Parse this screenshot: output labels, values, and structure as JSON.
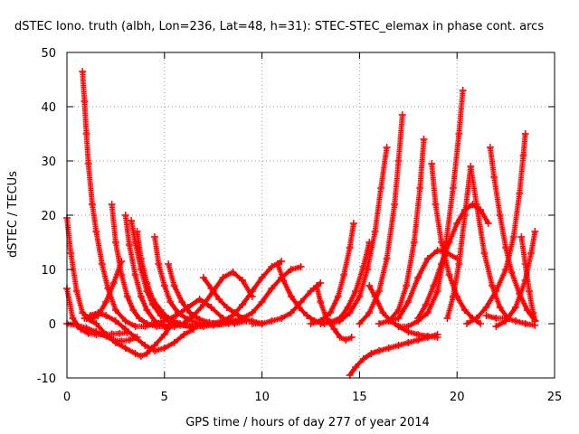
{
  "chart_data": {
    "type": "scatter",
    "title": "dSTEC Iono. truth (albh, Lon=236, Lat=48, h=31): STEC-STEC_elemax in phase cont. arcs",
    "xlabel": "GPS time / hours of day 277 of year 2014",
    "ylabel": "dSTEC  / TECUs",
    "xlim": [
      0,
      25
    ],
    "ylim": [
      -10,
      50
    ],
    "xticks": [
      "0",
      "5",
      "10",
      "15",
      "20",
      "25"
    ],
    "yticks": [
      "-10",
      "0",
      "10",
      "20",
      "30",
      "40",
      "50"
    ],
    "grid": true,
    "legend": null,
    "marker": "plus",
    "colors": {
      "series": "#ff0000",
      "grid": "#a0a0a0",
      "axis": "#000000"
    },
    "series": [
      {
        "x": [
          0.0,
          0.3,
          0.7,
          1.1,
          1.5,
          1.9,
          2.3,
          2.7,
          3.1
        ],
        "y": [
          6.5,
          1.0,
          -1.0,
          -1.8,
          -2.0,
          -2.0,
          -1.9,
          -1.8,
          -1.7
        ]
      },
      {
        "x": [
          0.0,
          0.2,
          0.5,
          0.8,
          1.2,
          1.6,
          2.0,
          2.4,
          2.8
        ],
        "y": [
          19.5,
          13.0,
          6.0,
          2.0,
          0.8,
          1.5,
          4.0,
          7.5,
          11.5
        ]
      },
      {
        "x": [
          0.0,
          0.5,
          1.0,
          1.5,
          2.0,
          2.4,
          2.8,
          3.2,
          3.6
        ],
        "y": [
          0.0,
          -0.3,
          -0.8,
          -1.5,
          -2.3,
          -3.0,
          -3.2,
          -3.0,
          -2.5
        ]
      },
      {
        "x": [
          0.8,
          0.9,
          1.0,
          1.1,
          1.3,
          1.5,
          1.8,
          2.1,
          2.5,
          3.0,
          3.5,
          4.0,
          4.5,
          5.0
        ],
        "y": [
          46.5,
          41.0,
          35.0,
          29.5,
          22.0,
          17.0,
          11.0,
          6.5,
          2.5,
          0.5,
          -0.5,
          -0.5,
          0.0,
          0.5
        ]
      },
      {
        "x": [
          0.9,
          1.2,
          1.6,
          2.0,
          2.5,
          3.0,
          3.5,
          4.0,
          4.5,
          5.0,
          5.5,
          6.0,
          6.5
        ],
        "y": [
          1.0,
          1.5,
          2.0,
          1.5,
          0.5,
          -1.0,
          -2.5,
          -4.0,
          -5.0,
          -4.5,
          -3.5,
          -2.0,
          -1.0
        ]
      },
      {
        "x": [
          1.0,
          1.5,
          2.0,
          2.5,
          3.0,
          3.5,
          3.8,
          4.1,
          4.5,
          5.0,
          5.5
        ],
        "y": [
          1.0,
          0.0,
          -2.0,
          -3.5,
          -4.5,
          -5.5,
          -6.0,
          -5.5,
          -4.0,
          -2.0,
          0.5
        ]
      },
      {
        "x": [
          2.3,
          2.5,
          2.8,
          3.1,
          3.4,
          3.7,
          4.1,
          4.6,
          5.2,
          5.8
        ],
        "y": [
          22.0,
          15.0,
          9.0,
          5.0,
          2.5,
          1.0,
          0.0,
          -0.5,
          -0.5,
          0.0
        ]
      },
      {
        "x": [
          3.0,
          3.2,
          3.5,
          3.8,
          4.1,
          4.5,
          5.0,
          5.5,
          6.0
        ],
        "y": [
          20.0,
          14.5,
          9.0,
          5.0,
          2.5,
          0.5,
          -0.5,
          -0.5,
          0.0
        ]
      },
      {
        "x": [
          3.3,
          3.5,
          3.8,
          4.1,
          4.4,
          4.8,
          5.3,
          5.8,
          6.4,
          7.0
        ],
        "y": [
          19.0,
          15.0,
          10.0,
          6.0,
          3.5,
          1.5,
          0.3,
          -0.3,
          -0.5,
          -0.3
        ]
      },
      {
        "x": [
          3.6,
          3.8,
          4.1,
          4.4,
          4.8,
          5.2,
          5.7,
          6.3,
          7.0,
          7.8
        ],
        "y": [
          17.0,
          12.0,
          7.5,
          4.5,
          2.5,
          1.0,
          0.0,
          -0.5,
          -0.5,
          0.0
        ]
      },
      {
        "x": [
          4.5,
          4.7,
          5.0,
          5.3,
          5.7,
          6.2,
          6.8,
          7.5,
          8.3
        ],
        "y": [
          16.0,
          11.0,
          7.0,
          4.0,
          2.0,
          0.8,
          0.0,
          -0.3,
          0.0
        ]
      },
      {
        "x": [
          5.2,
          5.5,
          5.9,
          6.3,
          6.8,
          7.3,
          7.9,
          8.6
        ],
        "y": [
          11.0,
          7.0,
          4.0,
          2.0,
          0.8,
          0.2,
          0.0,
          0.3
        ]
      },
      {
        "x": [
          5.0,
          5.6,
          6.2,
          6.8,
          7.4,
          8.0,
          8.6,
          9.2
        ],
        "y": [
          0.5,
          1.5,
          3.0,
          4.5,
          3.0,
          1.0,
          0.0,
          0.5
        ]
      },
      {
        "x": [
          6.0,
          6.5,
          7.0,
          7.5,
          8.0,
          8.5,
          9.0,
          9.5
        ],
        "y": [
          0.0,
          1.5,
          3.5,
          6.0,
          8.5,
          9.5,
          8.0,
          5.0
        ]
      },
      {
        "x": [
          7.0,
          7.4,
          7.8,
          8.2,
          8.6,
          9.0,
          9.5,
          10.0
        ],
        "y": [
          8.5,
          6.5,
          4.5,
          3.0,
          2.0,
          1.0,
          0.5,
          0.0
        ]
      },
      {
        "x": [
          7.5,
          8.0,
          8.5,
          9.0,
          9.5,
          10.0,
          10.5,
          11.0
        ],
        "y": [
          0.0,
          0.5,
          1.5,
          3.5,
          6.0,
          8.5,
          10.5,
          11.5
        ]
      },
      {
        "x": [
          8.0,
          8.5,
          9.0,
          9.5,
          10.0,
          10.5,
          11.0,
          11.5,
          12.0
        ],
        "y": [
          0.5,
          0.5,
          1.0,
          2.0,
          4.0,
          6.5,
          8.5,
          10.0,
          10.5
        ]
      },
      {
        "x": [
          9.5,
          10.0,
          10.5,
          11.0,
          11.5,
          12.0,
          12.5,
          13.0
        ],
        "y": [
          0.0,
          0.0,
          0.5,
          1.0,
          2.0,
          4.0,
          6.0,
          7.5
        ]
      },
      {
        "x": [
          10.8,
          11.1,
          11.5,
          11.9,
          12.3,
          12.7,
          13.2
        ],
        "y": [
          11.0,
          8.0,
          5.0,
          3.0,
          1.5,
          0.5,
          0.0
        ]
      },
      {
        "x": [
          12.8,
          13.0,
          13.3,
          13.7,
          14.0,
          14.3,
          14.6
        ],
        "y": [
          7.0,
          4.0,
          1.0,
          -1.0,
          -2.5,
          -3.0,
          -2.5
        ]
      },
      {
        "x": [
          12.5,
          13.0,
          13.5,
          13.9,
          14.2,
          14.5,
          14.7
        ],
        "y": [
          0.0,
          0.5,
          2.0,
          5.0,
          9.0,
          14.0,
          18.5
        ]
      },
      {
        "x": [
          13.0,
          13.5,
          14.0,
          14.4,
          14.8,
          15.2,
          15.5
        ],
        "y": [
          0.0,
          0.3,
          1.0,
          3.0,
          6.0,
          10.5,
          15.0
        ]
      },
      {
        "x": [
          13.5,
          14.0,
          14.5,
          15.0,
          15.4,
          15.8,
          16.1,
          16.4
        ],
        "y": [
          0.0,
          0.5,
          2.0,
          5.0,
          10.0,
          17.0,
          25.0,
          32.5
        ]
      },
      {
        "x": [
          14.5,
          14.8,
          15.2,
          15.6,
          16.0,
          16.5,
          17.0,
          17.5,
          18.0,
          18.5,
          19.0
        ],
        "y": [
          -9.5,
          -8.0,
          -6.5,
          -5.5,
          -5.0,
          -4.5,
          -4.0,
          -3.5,
          -3.0,
          -2.5,
          -2.0
        ]
      },
      {
        "x": [
          15.5,
          15.8,
          16.2,
          16.6,
          17.0,
          17.5,
          18.0,
          18.5,
          19.0
        ],
        "y": [
          7.0,
          5.0,
          2.0,
          0.5,
          -0.5,
          -1.5,
          -2.0,
          -2.3,
          -2.5
        ]
      },
      {
        "x": [
          15.0,
          15.5,
          16.0,
          16.4,
          16.8,
          17.0,
          17.2
        ],
        "y": [
          0.0,
          2.0,
          6.0,
          12.0,
          22.0,
          30.0,
          38.5
        ]
      },
      {
        "x": [
          16.5,
          17.0,
          17.5,
          18.0,
          18.5,
          19.0,
          19.5,
          20.0
        ],
        "y": [
          0.5,
          1.0,
          4.0,
          8.5,
          12.0,
          13.5,
          13.0,
          12.0
        ]
      },
      {
        "x": [
          16.0,
          16.5,
          17.0,
          17.4,
          17.8,
          18.1,
          18.3
        ],
        "y": [
          0.0,
          0.5,
          2.5,
          7.0,
          15.0,
          25.0,
          34.0
        ]
      },
      {
        "x": [
          18.0,
          18.4,
          18.8,
          19.2,
          19.6,
          20.0,
          20.4,
          20.8,
          21.2,
          21.6
        ],
        "y": [
          1.0,
          3.5,
          7.0,
          11.0,
          15.0,
          18.5,
          21.0,
          22.0,
          21.0,
          18.5
        ]
      },
      {
        "x": [
          18.7,
          18.9,
          19.2,
          19.6,
          20.0,
          20.4,
          20.8,
          21.2
        ],
        "y": [
          29.5,
          22.0,
          15.0,
          9.0,
          5.0,
          2.5,
          1.0,
          0.0
        ]
      },
      {
        "x": [
          17.0,
          17.5,
          18.0,
          18.5,
          19.0,
          19.4,
          19.8,
          20.1,
          20.3
        ],
        "y": [
          -0.5,
          -0.5,
          0.5,
          2.0,
          6.0,
          14.0,
          25.0,
          35.0,
          43.0
        ]
      },
      {
        "x": [
          19.5,
          19.8,
          20.1,
          20.4,
          20.7,
          21.0,
          21.4,
          21.8,
          22.2,
          22.6
        ],
        "y": [
          1.0,
          5.0,
          11.0,
          20.0,
          29.0,
          22.0,
          13.0,
          7.0,
          3.0,
          1.0
        ]
      },
      {
        "x": [
          21.7,
          21.9,
          22.2,
          22.5,
          22.8,
          23.2,
          23.6,
          24.0
        ],
        "y": [
          32.5,
          27.0,
          20.0,
          14.0,
          9.5,
          5.5,
          2.5,
          0.5
        ]
      },
      {
        "x": [
          20.5,
          21.0,
          21.5,
          22.0,
          22.5,
          22.9,
          23.2,
          23.4,
          23.5
        ],
        "y": [
          0.0,
          1.0,
          3.0,
          6.0,
          10.0,
          16.0,
          24.0,
          31.0,
          35.0
        ]
      },
      {
        "x": [
          21.5,
          22.0,
          22.5,
          23.0,
          23.5,
          24.0
        ],
        "y": [
          1.5,
          1.0,
          1.0,
          0.5,
          0.0,
          -0.3
        ]
      },
      {
        "x": [
          23.3,
          23.5,
          23.7,
          23.9,
          24.0
        ],
        "y": [
          16.0,
          11.0,
          6.0,
          2.0,
          0.5
        ]
      },
      {
        "x": [
          22.0,
          22.5,
          23.0,
          23.5,
          23.8,
          24.0
        ],
        "y": [
          -0.5,
          0.5,
          3.0,
          8.0,
          13.0,
          17.0
        ]
      }
    ]
  }
}
